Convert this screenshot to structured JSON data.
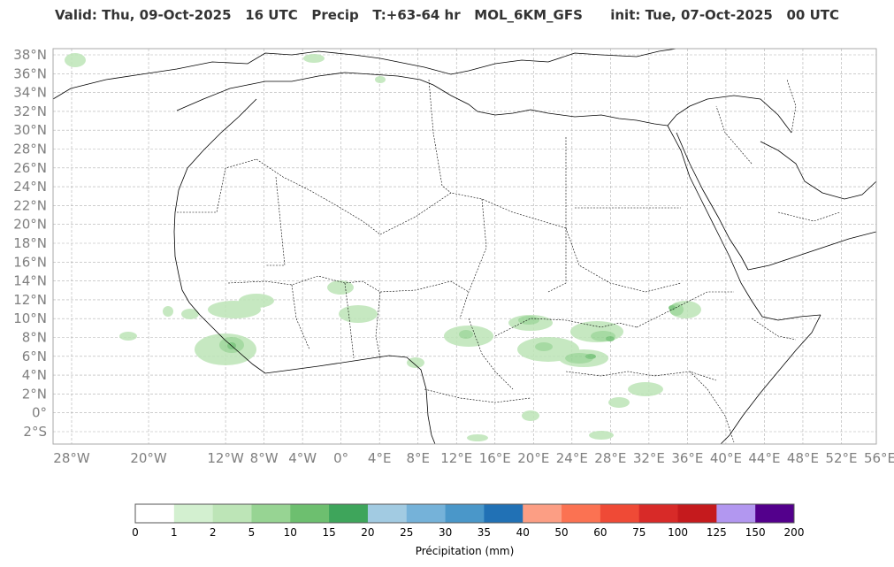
{
  "header": {
    "valid_text": "Valid: Thu, 09-Oct-2025   16 UTC   Precip   T:+63-64 hr   MOL_6KM_GFS",
    "init_text": "init: Tue, 07-Oct-2025   00 UTC"
  },
  "map": {
    "lat_labels": [
      "38°N",
      "36°N",
      "34°N",
      "32°N",
      "30°N",
      "28°N",
      "26°N",
      "24°N",
      "22°N",
      "20°N",
      "18°N",
      "16°N",
      "14°N",
      "12°N",
      "10°N",
      "8°N",
      "6°N",
      "4°N",
      "2°N",
      "0°",
      "2°S"
    ],
    "lon_labels": [
      "28°W",
      "20°W",
      "12°W",
      "8°W",
      "4°W",
      "0°",
      "4°E",
      "8°E",
      "12°E",
      "16°E",
      "20°E",
      "24°E",
      "28°E",
      "32°E",
      "36°E",
      "40°E",
      "44°E",
      "48°E",
      "52°E",
      "56°E"
    ],
    "ocean_color": "#ffffff",
    "coast_color": "#000000",
    "grid": true
  },
  "colorbar": {
    "label": "Précipitation (mm)",
    "ticks": [
      "0",
      "1",
      "2",
      "5",
      "10",
      "15",
      "20",
      "25",
      "30",
      "35",
      "40",
      "50",
      "60",
      "75",
      "100",
      "125",
      "150",
      "200"
    ],
    "colors": [
      "#ffffff",
      "#d3f0d0",
      "#bde5b7",
      "#97d493",
      "#6dbf6f",
      "#3ea55b",
      "#a2cbe2",
      "#75b2d9",
      "#4a97c9",
      "#2171b5",
      "#fc9e84",
      "#fb7252",
      "#ef4a36",
      "#d82a28",
      "#c51a1d",
      "#b297f0",
      "#53008c"
    ]
  }
}
